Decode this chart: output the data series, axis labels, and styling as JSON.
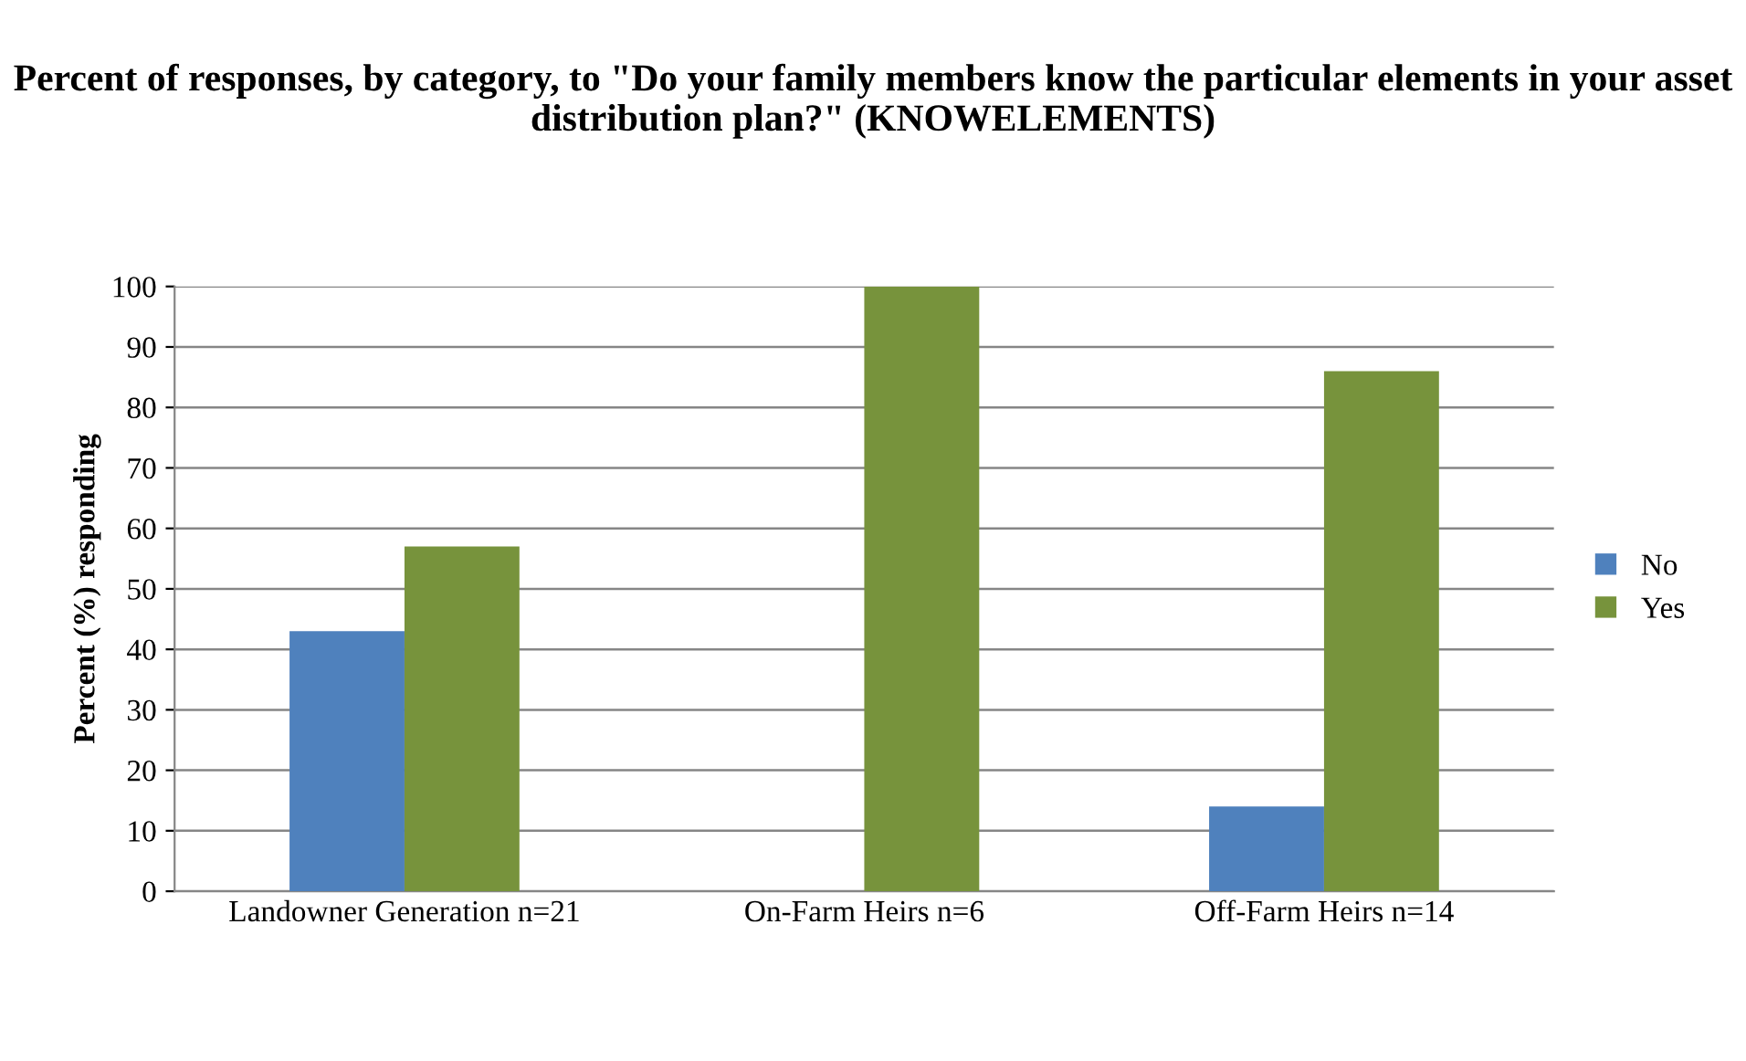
{
  "chart_data": {
    "type": "bar",
    "title": "Percent of responses, by category, to \"Do your family members know the particular elements in your asset distribution plan?\" (KNOWELEMENTS)",
    "ylabel": "Percent (%) responding",
    "categories": [
      "Landowner Generation n=21",
      "On-Farm Heirs n=6",
      "Off-Farm Heirs n=14"
    ],
    "series": [
      {
        "name": "No",
        "color": "#4f81bd",
        "values": [
          43,
          0,
          14
        ]
      },
      {
        "name": "Yes",
        "color": "#77933c",
        "values": [
          57,
          100,
          86
        ]
      }
    ],
    "ylim": [
      0,
      100
    ],
    "yticks": [
      0,
      10,
      20,
      30,
      40,
      50,
      60,
      70,
      80,
      90,
      100
    ],
    "grid": "y",
    "legend": "right"
  }
}
